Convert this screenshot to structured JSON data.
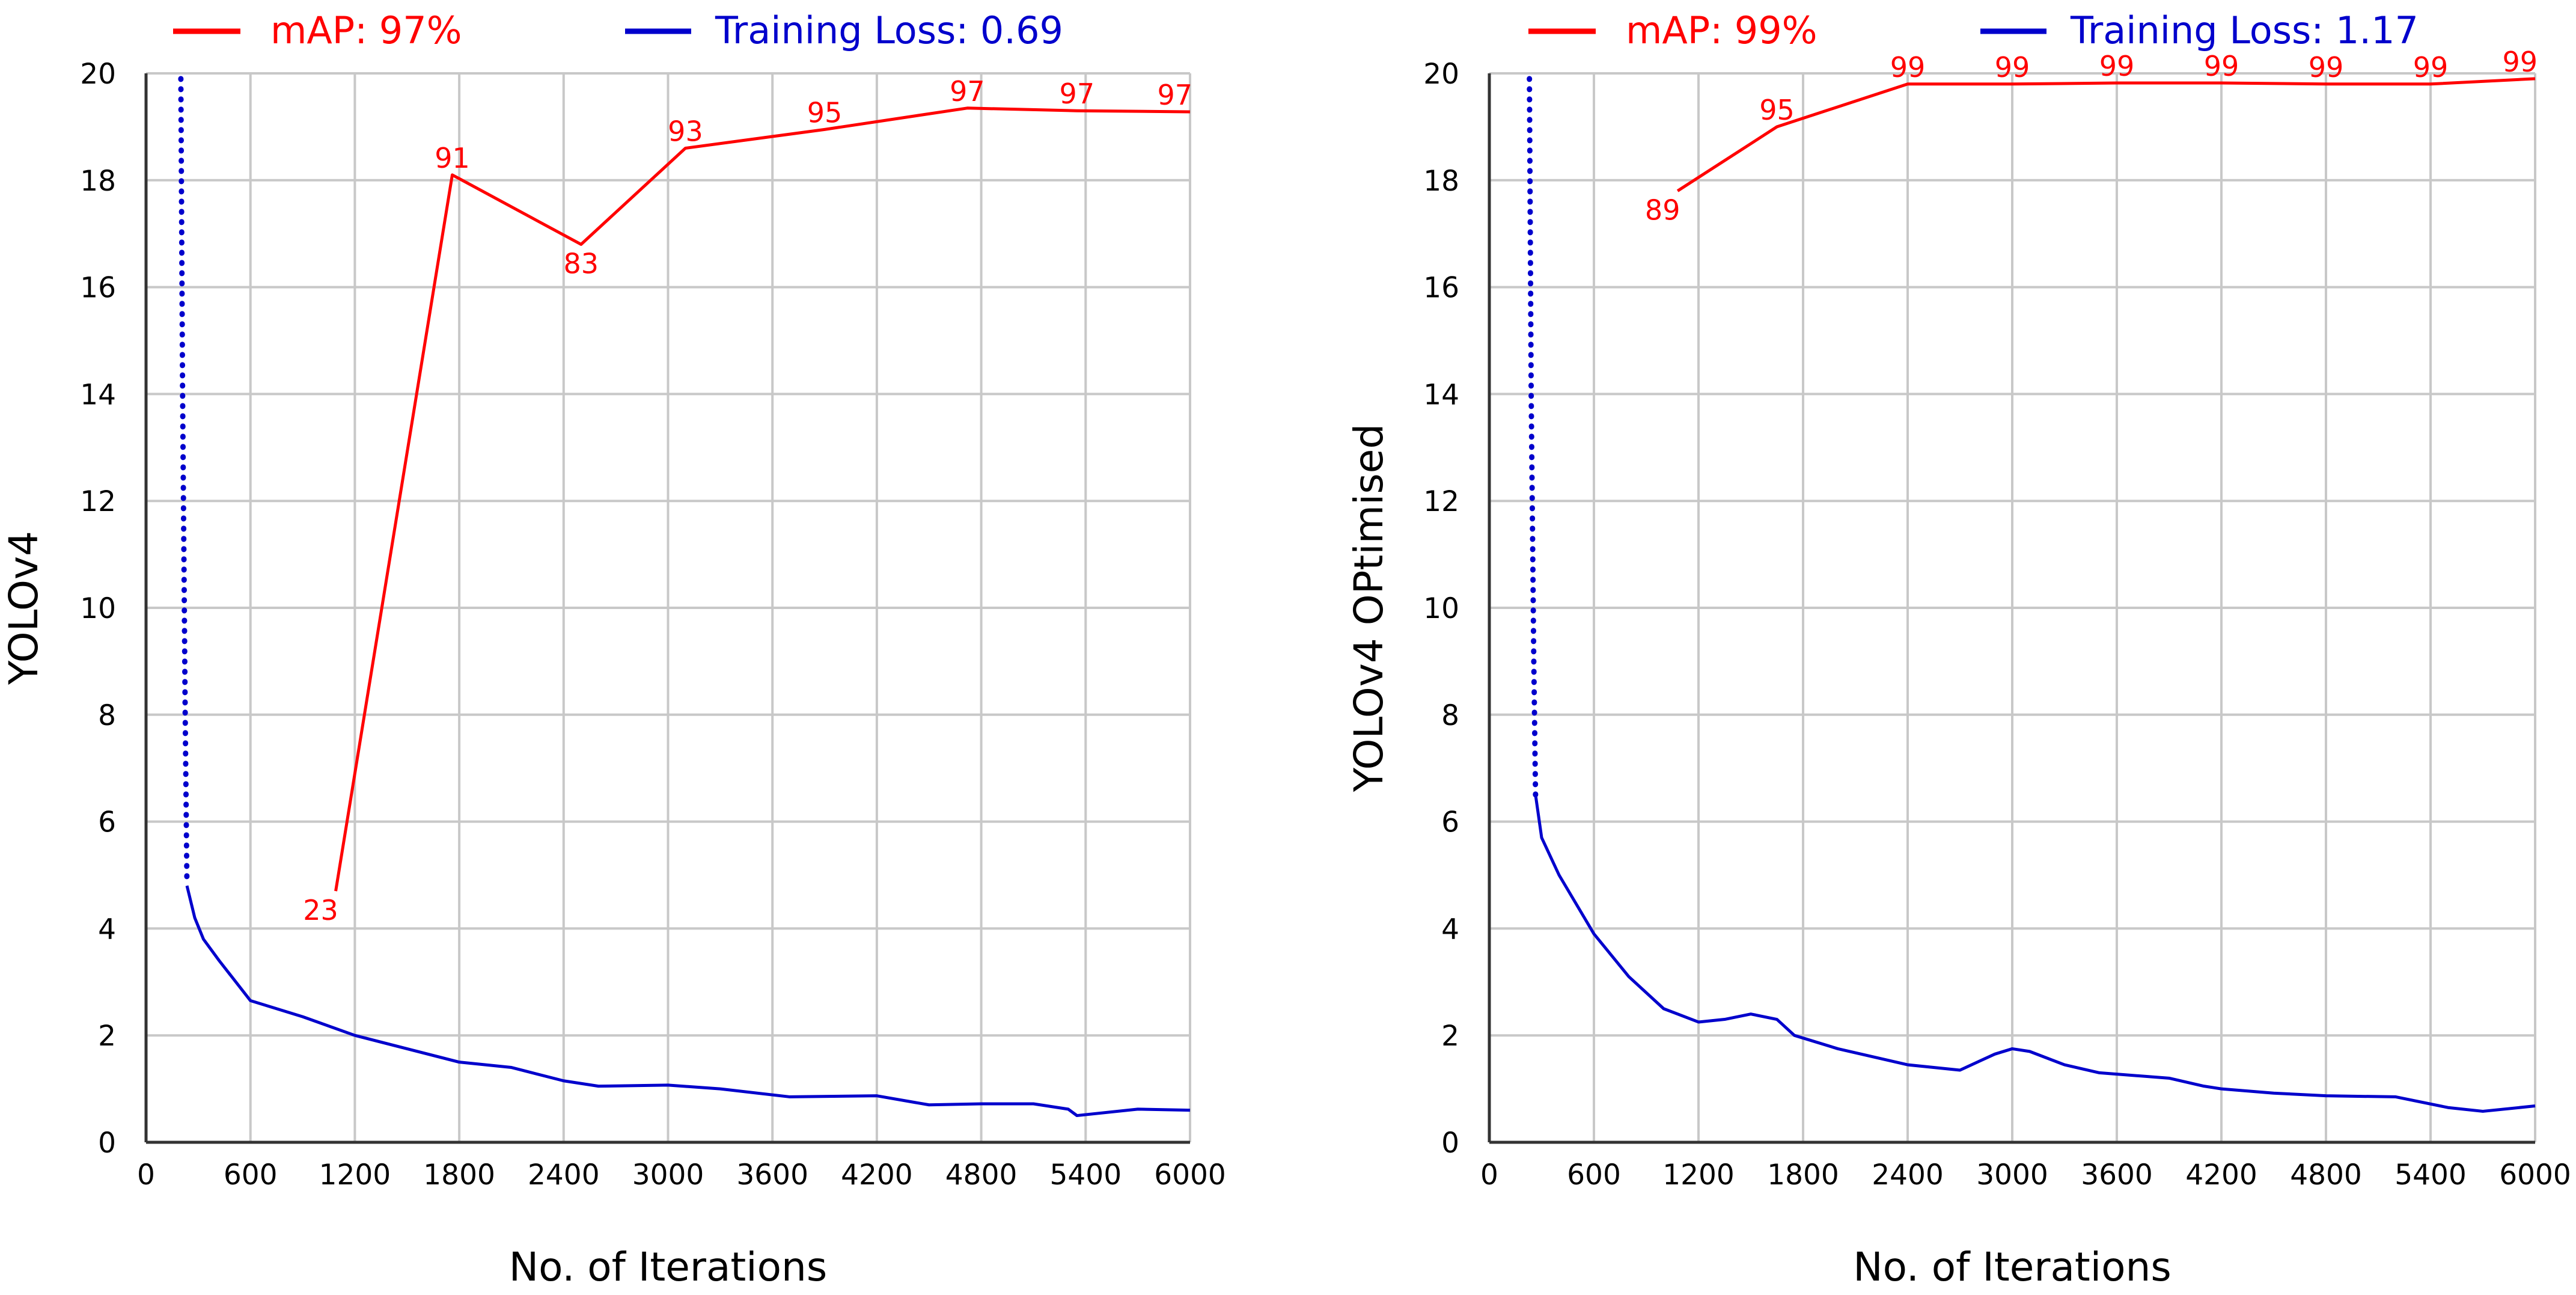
{
  "colors": {
    "map": "#ff0000",
    "loss": "#0000cc",
    "grid": "#c8c8c8",
    "axis": "#000000"
  },
  "chart_data": [
    {
      "type": "line",
      "title": "",
      "xlabel": "No. of Iterations",
      "ylabel": "YOLOv4",
      "xlim": [
        0,
        6000
      ],
      "ylim": [
        0,
        20
      ],
      "xticks": [
        "0",
        "600",
        "1200",
        "1800",
        "2400",
        "3000",
        "3600",
        "4200",
        "4800",
        "5400",
        "6000"
      ],
      "yticks": [
        "0",
        "2",
        "4",
        "6",
        "8",
        "10",
        "12",
        "14",
        "16",
        "18",
        "20"
      ],
      "legend": {
        "map_label": "mAP: 97%",
        "loss_label": "Training Loss: 0.69",
        "position": "top"
      },
      "series": [
        {
          "name": "mAP",
          "points": [
            [
              1090,
              4.7
            ],
            [
              1760,
              18.1
            ],
            [
              2500,
              16.8
            ],
            [
              3100,
              18.6
            ],
            [
              3900,
              18.95
            ],
            [
              4720,
              19.35
            ],
            [
              5350,
              19.3
            ],
            [
              6000,
              19.28
            ]
          ],
          "labels": [
            "23",
            "91",
            "83",
            "93",
            "95",
            "97",
            "97",
            "97"
          ],
          "label_pos": [
            "below",
            "above",
            "below",
            "above",
            "above",
            "above",
            "above",
            "above"
          ]
        },
        {
          "name": "Training Loss",
          "dotted": [
            [
              200,
              19.9
            ],
            [
              210,
              14
            ],
            [
              225,
              8
            ],
            [
              235,
              4.8
            ]
          ],
          "points": [
            [
              235,
              4.8
            ],
            [
              280,
              4.2
            ],
            [
              330,
              3.8
            ],
            [
              420,
              3.4
            ],
            [
              600,
              2.65
            ],
            [
              900,
              2.35
            ],
            [
              1200,
              2.0
            ],
            [
              1500,
              1.75
            ],
            [
              1800,
              1.5
            ],
            [
              2100,
              1.4
            ],
            [
              2400,
              1.15
            ],
            [
              2600,
              1.05
            ],
            [
              3000,
              1.07
            ],
            [
              3300,
              1.0
            ],
            [
              3700,
              0.85
            ],
            [
              4200,
              0.87
            ],
            [
              4500,
              0.7
            ],
            [
              4800,
              0.72
            ],
            [
              5100,
              0.72
            ],
            [
              5300,
              0.62
            ],
            [
              5350,
              0.5
            ],
            [
              5700,
              0.62
            ],
            [
              6000,
              0.6
            ]
          ]
        }
      ]
    },
    {
      "type": "line",
      "title": "",
      "xlabel": "No. of Iterations",
      "ylabel": "YOLOv4 OPtimised",
      "xlim": [
        0,
        6000
      ],
      "ylim": [
        0,
        20
      ],
      "xticks": [
        "0",
        "600",
        "1200",
        "1800",
        "2400",
        "3000",
        "3600",
        "4200",
        "4800",
        "5400",
        "6000"
      ],
      "yticks": [
        "0",
        "2",
        "4",
        "6",
        "8",
        "10",
        "12",
        "14",
        "16",
        "18",
        "20"
      ],
      "legend": {
        "map_label": "mAP: 99%",
        "loss_label": "Training Loss: 1.17",
        "position": "top"
      },
      "series": [
        {
          "name": "mAP",
          "points": [
            [
              1080,
              17.8
            ],
            [
              1650,
              19.0
            ],
            [
              2400,
              19.8
            ],
            [
              3000,
              19.8
            ],
            [
              3600,
              19.82
            ],
            [
              4200,
              19.82
            ],
            [
              4800,
              19.8
            ],
            [
              5400,
              19.8
            ],
            [
              6000,
              19.9
            ]
          ],
          "labels": [
            "89",
            "95",
            "99",
            "99",
            "99",
            "99",
            "99",
            "99",
            "99"
          ],
          "label_pos": [
            "below",
            "above",
            "above",
            "above",
            "above",
            "above",
            "above",
            "above",
            "above"
          ]
        },
        {
          "name": "Training Loss",
          "dotted": [
            [
              230,
              19.9
            ],
            [
              240,
              14
            ],
            [
              255,
              9
            ],
            [
              265,
              6.5
            ]
          ],
          "points": [
            [
              265,
              6.5
            ],
            [
              300,
              5.7
            ],
            [
              400,
              5.0
            ],
            [
              600,
              3.9
            ],
            [
              800,
              3.1
            ],
            [
              1000,
              2.5
            ],
            [
              1200,
              2.25
            ],
            [
              1350,
              2.3
            ],
            [
              1500,
              2.4
            ],
            [
              1650,
              2.3
            ],
            [
              1750,
              2.0
            ],
            [
              2000,
              1.75
            ],
            [
              2400,
              1.45
            ],
            [
              2700,
              1.35
            ],
            [
              2900,
              1.65
            ],
            [
              3000,
              1.75
            ],
            [
              3100,
              1.7
            ],
            [
              3300,
              1.45
            ],
            [
              3500,
              1.3
            ],
            [
              3900,
              1.2
            ],
            [
              4100,
              1.05
            ],
            [
              4200,
              1.0
            ],
            [
              4500,
              0.92
            ],
            [
              4800,
              0.87
            ],
            [
              5200,
              0.85
            ],
            [
              5500,
              0.65
            ],
            [
              5700,
              0.58
            ],
            [
              6000,
              0.68
            ]
          ]
        }
      ]
    }
  ]
}
